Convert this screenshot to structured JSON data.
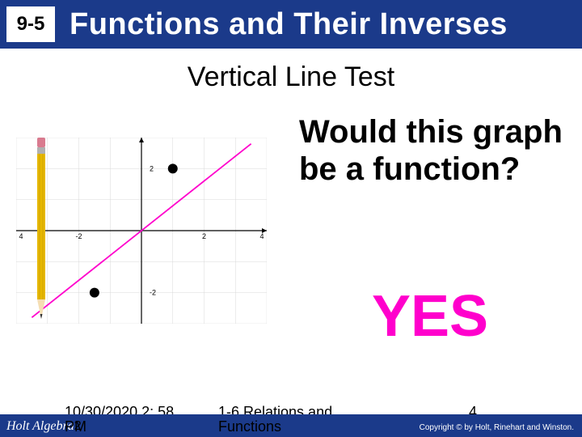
{
  "header": {
    "section": "9-5",
    "title": "Functions and Their Inverses",
    "bar_color": "#1b3a8a",
    "title_color": "#ffffff"
  },
  "subtitle": "Vertical Line Test",
  "question": "Would this graph be a function?",
  "answer": "YES",
  "answer_color": "#ff00cc",
  "graph": {
    "type": "line",
    "xlim": [
      -4,
      4
    ],
    "ylim": [
      -3,
      3
    ],
    "xtick_step": 1,
    "ytick_step": 1,
    "axis_color": "#000000",
    "grid_color": "#d8d8d8",
    "line_color": "#ff00cc",
    "line_points": [
      [
        -3.5,
        -2.8
      ],
      [
        3.5,
        2.8
      ]
    ],
    "markers": [
      {
        "x": 1.0,
        "y": 2.0,
        "style": "circle",
        "size": 12,
        "color": "#000000"
      },
      {
        "x": -1.5,
        "y": -2.0,
        "style": "circle",
        "size": 12,
        "color": "#000000"
      }
    ],
    "pencil": {
      "x": -3.2,
      "body_color": "#e6b800",
      "tip_color": "#f5deb3",
      "eraser_color": "#d97b8f",
      "ferrule_color": "#b0b0b0"
    },
    "tick_labels_x": [
      "4",
      "-2",
      "2",
      "4"
    ],
    "tick_labels_y": [
      "2",
      "-2"
    ],
    "tick_fontsize": 9
  },
  "footer": {
    "book": "Holt Algebra",
    "timestamp": "10/30/2020 2: 58",
    "pm": "PM",
    "relations": "1-6 Relations and",
    "functions": "Functions",
    "copyright_prefix": "Copyright ©",
    "copyright_text": "by Holt, Rinehart and Winston.",
    "slide_num": "4",
    "two_suffix": "2"
  }
}
